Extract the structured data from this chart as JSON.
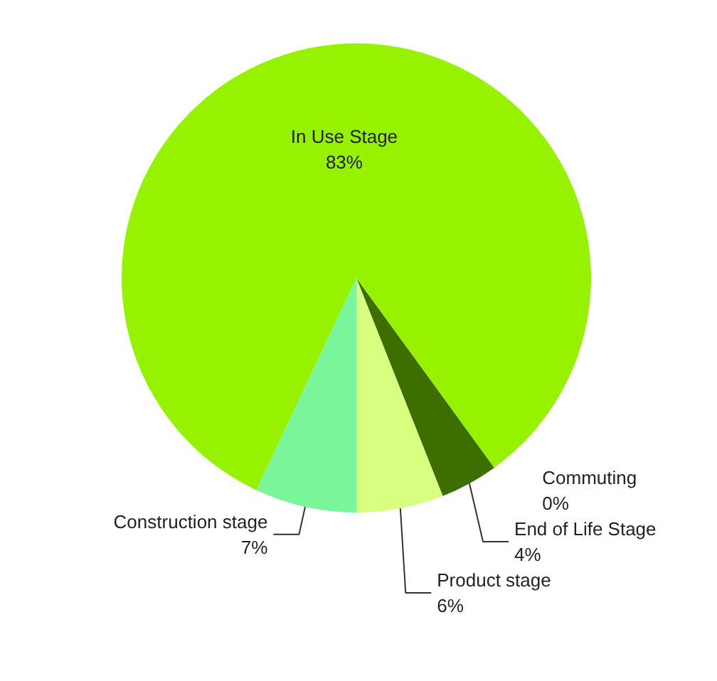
{
  "chart_data": {
    "type": "pie",
    "categories": [
      "Commuting",
      "End of Life Stage",
      "Product stage",
      "Construction stage",
      "In Use Stage"
    ],
    "values": [
      0,
      4,
      6,
      7,
      83
    ],
    "colors": [
      "#2f5a00",
      "#3d6e00",
      "#d9ff80",
      "#7af59a",
      "#96f200"
    ],
    "value_labels": [
      "0%",
      "4%",
      "6%",
      "7%",
      "83%"
    ]
  }
}
